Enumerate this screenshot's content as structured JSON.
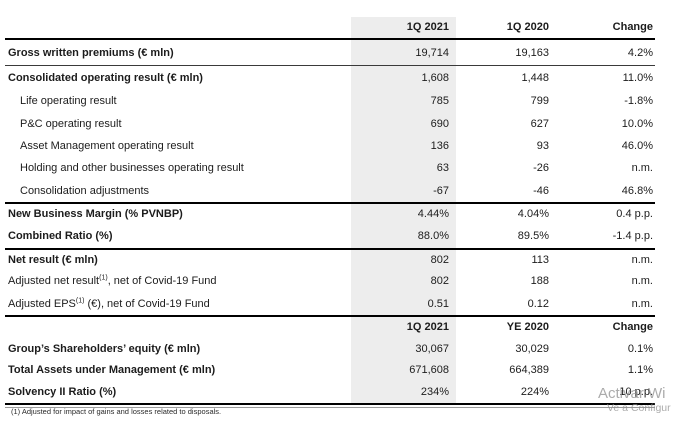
{
  "table": {
    "header1": {
      "c1": "1Q 2021",
      "c2": "1Q 2020",
      "c3": "Change"
    },
    "header2": {
      "c1": "1Q 2021",
      "c2": "YE 2020",
      "c3": "Change"
    },
    "rows": [
      {
        "label": "Gross written premiums (€ mln)",
        "v1": "19,714",
        "v2": "19,163",
        "chg": "4.2%"
      },
      {
        "label": "Consolidated operating result (€ mln)",
        "v1": "1,608",
        "v2": "1,448",
        "chg": "11.0%"
      },
      {
        "label": "Life operating result",
        "v1": "785",
        "v2": "799",
        "chg": "-1.8%"
      },
      {
        "label": "P&C operating result",
        "v1": "690",
        "v2": "627",
        "chg": "10.0%"
      },
      {
        "label": "Asset Management operating result",
        "v1": "136",
        "v2": "93",
        "chg": "46.0%"
      },
      {
        "label": "Holding and other businesses operating result",
        "v1": "63",
        "v2": "-26",
        "chg": "n.m."
      },
      {
        "label": "Consolidation adjustments",
        "v1": "-67",
        "v2": "-46",
        "chg": "46.8%"
      },
      {
        "label": "New Business Margin (% PVNBP)",
        "v1": "4.44%",
        "v2": "4.04%",
        "chg": "0.4 p.p."
      },
      {
        "label": "Combined Ratio (%)",
        "v1": "88.0%",
        "v2": "89.5%",
        "chg": "-1.4 p.p."
      },
      {
        "label": "Net result (€ mln)",
        "v1": "802",
        "v2": "113",
        "chg": "n.m."
      },
      {
        "label_pre": "Adjusted net result",
        "sup": "(1)",
        "label_post": ", net of Covid-19 Fund",
        "v1": "802",
        "v2": "188",
        "chg": "n.m."
      },
      {
        "label_pre": "Adjusted EPS",
        "sup": "(1)",
        "label_post": " (€), net of Covid-19 Fund",
        "v1": "0.51",
        "v2": "0.12",
        "chg": "n.m."
      },
      {
        "label": "Group’s Shareholders’ equity (€ mln)",
        "v1": "30,067",
        "v2": "30,029",
        "chg": "0.1%"
      },
      {
        "label": "Total Assets under Management (€ mln)",
        "v1": "671,608",
        "v2": "664,389",
        "chg": "1.1%"
      },
      {
        "label": "Solvency II Ratio (%)",
        "v1": "234%",
        "v2": "224%",
        "chg": "10 p.p."
      }
    ]
  },
  "footnote": "(1) Adjusted for impact of gains and losses related to disposals.",
  "watermark": {
    "line1": "Activar Wi",
    "line2": "Ve a Configur"
  }
}
